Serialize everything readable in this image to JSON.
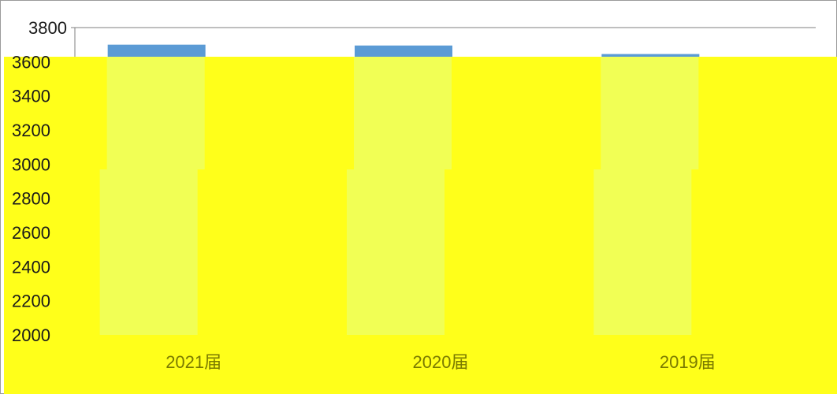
{
  "chart_data": {
    "type": "bar",
    "categories": [
      "2021届",
      "2020届",
      "2019届"
    ],
    "values": [
      3700,
      3695,
      3645
    ],
    "ylim": [
      2000,
      3800
    ],
    "yticks": [
      2000,
      2200,
      2400,
      2600,
      2800,
      3000,
      3200,
      3400,
      3600,
      3800
    ],
    "grid": true,
    "colors": {
      "bar": "#5b9bd5",
      "overlay": "#ffff1a",
      "overlay_light": "#f1ff55",
      "axis": "#7f7f7f",
      "grid": "#7f7f7f"
    }
  }
}
